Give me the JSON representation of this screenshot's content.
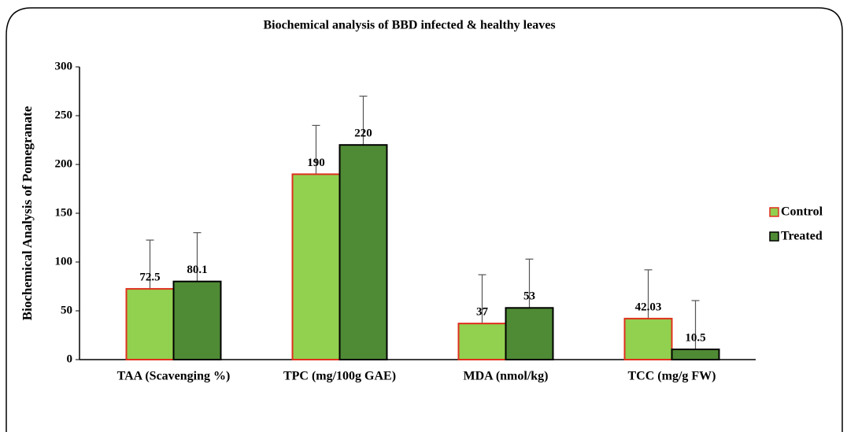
{
  "chart_data": {
    "type": "bar",
    "title": "Biochemical analysis of BBD infected & healthy leaves",
    "y_label": "Biochemical Analysis of Pomegranate",
    "categories": [
      "TAA (Scavenging %)",
      "TPC (mg/100g GAE)",
      "MDA (nmol/kg)",
      "TCC (mg/g FW)"
    ],
    "series": [
      {
        "name": "Control",
        "color": "#92d050",
        "edge": "#e0301e",
        "values": [
          72.5,
          190,
          37,
          42.03
        ],
        "errors": [
          50,
          50,
          50,
          50
        ]
      },
      {
        "name": "Treated",
        "color": "#4f8a35",
        "edge": "#000000",
        "values": [
          80.1,
          220,
          53,
          10.5
        ],
        "errors": [
          50,
          50,
          50,
          50
        ]
      }
    ],
    "ylim": [
      0,
      300
    ],
    "yticks": [
      0,
      50,
      100,
      150,
      200,
      250,
      300
    ],
    "grid": false,
    "legend": "right"
  }
}
